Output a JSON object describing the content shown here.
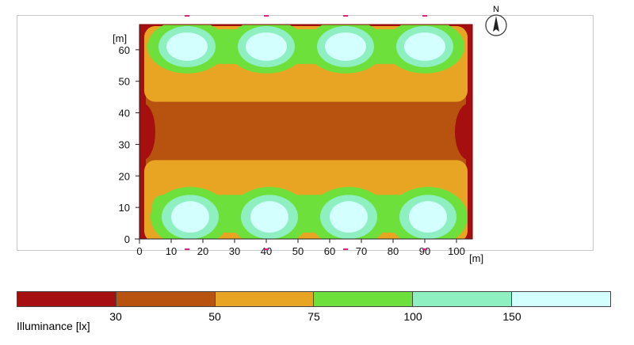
{
  "chart_data": {
    "type": "heatmap",
    "title": "",
    "x_unit": "[m]",
    "y_unit": "[m]",
    "xlim": [
      0,
      105
    ],
    "ylim": [
      0,
      68
    ],
    "x_ticks": [
      0,
      10,
      20,
      30,
      40,
      50,
      60,
      70,
      80,
      90,
      100
    ],
    "y_ticks": [
      0,
      10,
      20,
      30,
      40,
      50,
      60
    ],
    "luminaire_marks_top_x": [
      15,
      40,
      65,
      90
    ],
    "luminaire_marks_bottom_x": [
      15,
      40,
      65,
      90
    ],
    "light_spots": [
      {
        "x": 15,
        "y": 61
      },
      {
        "x": 40,
        "y": 61
      },
      {
        "x": 65,
        "y": 61
      },
      {
        "x": 90,
        "y": 61
      },
      {
        "x": 16,
        "y": 7
      },
      {
        "x": 41,
        "y": 7
      },
      {
        "x": 66,
        "y": 7
      },
      {
        "x": 91,
        "y": 7
      }
    ],
    "legend": {
      "title": "Illuminance [lx]",
      "thresholds": [
        30,
        50,
        75,
        100,
        150
      ],
      "colors": [
        "#a50f0f",
        "#b8520f",
        "#e8a523",
        "#6de03b",
        "#8ef0c1",
        "#d4ffff"
      ]
    }
  },
  "north_label": "N"
}
